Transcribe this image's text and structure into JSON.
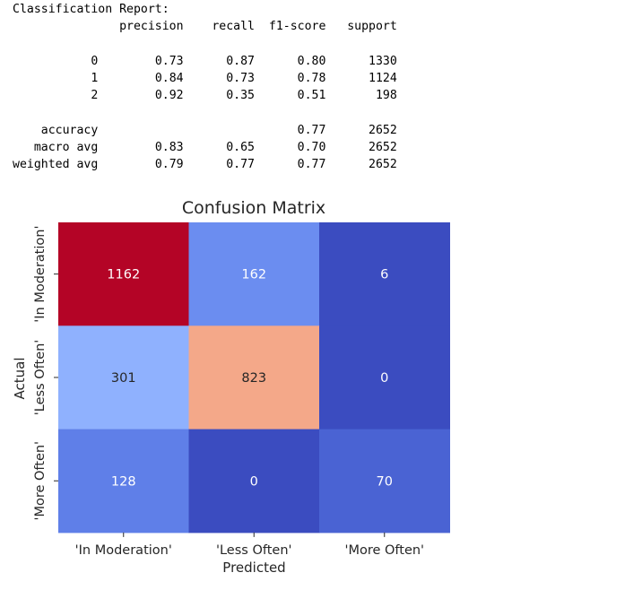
{
  "report": {
    "title": "Classification Report:",
    "columns": [
      "precision",
      "recall",
      "f1-score",
      "support"
    ],
    "rows": [
      {
        "label": "0",
        "precision": "0.73",
        "recall": "0.87",
        "f1": "0.80",
        "support": "1330"
      },
      {
        "label": "1",
        "precision": "0.84",
        "recall": "0.73",
        "f1": "0.78",
        "support": "1124"
      },
      {
        "label": "2",
        "precision": "0.92",
        "recall": "0.35",
        "f1": "0.51",
        "support": "198"
      }
    ],
    "summary": [
      {
        "label": "accuracy",
        "precision": "",
        "recall": "",
        "f1": "0.77",
        "support": "2652"
      },
      {
        "label": "macro avg",
        "precision": "0.83",
        "recall": "0.65",
        "f1": "0.70",
        "support": "2652"
      },
      {
        "label": "weighted avg",
        "precision": "0.79",
        "recall": "0.77",
        "f1": "0.77",
        "support": "2652"
      }
    ]
  },
  "chart_data": {
    "type": "heatmap",
    "title": "Confusion Matrix",
    "xlabel": "Predicted",
    "ylabel": "Actual",
    "x_categories": [
      "'In Moderation'",
      "'Less Often'",
      "'More Often'"
    ],
    "y_categories": [
      "'In Moderation'",
      "'Less Often'",
      "'More Often'"
    ],
    "values": [
      [
        1162,
        162,
        6
      ],
      [
        301,
        823,
        0
      ],
      [
        128,
        0,
        70
      ]
    ],
    "colormap": "coolwarm",
    "colorbar": false,
    "cell_colors": [
      [
        "#b40426",
        "#6b8df0",
        "#3b4cc0"
      ],
      [
        "#8fb1fe",
        "#f4a889",
        "#3b4cc0"
      ],
      [
        "#5f7fe8",
        "#3b4cc0",
        "#4a63d3"
      ]
    ],
    "annotation_colors": [
      [
        "#ffffff",
        "#ffffff",
        "#ffffff"
      ],
      [
        "#262626",
        "#262626",
        "#ffffff"
      ],
      [
        "#ffffff",
        "#ffffff",
        "#ffffff"
      ]
    ]
  }
}
